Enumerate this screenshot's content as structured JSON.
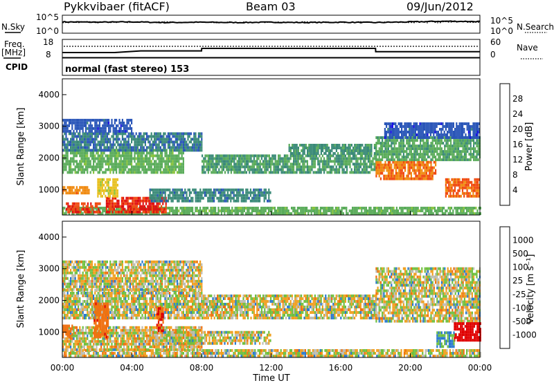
{
  "header": {
    "radar": "Pykkvibaer (fitACF)",
    "beam": "Beam 03",
    "date": "09/Jun/2012"
  },
  "noise_panel": {
    "left_label": "N.Sky",
    "left_ticks": [
      "10^5",
      "10^0"
    ],
    "right_ticks": [
      "10^5",
      "10^0"
    ],
    "right_label": "N.Search"
  },
  "freq_panel": {
    "left_label_1": "Freq.",
    "left_label_2": "[MHz]",
    "left_ticks": [
      "18",
      "8"
    ],
    "right_ticks": [
      "60",
      "0"
    ],
    "right_label": "Nave"
  },
  "cpid_panel": {
    "label": "CPID",
    "text": "normal (fast stereo) 153"
  },
  "x_axis": {
    "ticks": [
      "00:00",
      "04:00",
      "08:00",
      "12:00",
      "16:00",
      "20:00",
      "00:00"
    ],
    "label": "Time UT"
  },
  "power_panel": {
    "ylabel": "Slant Range [km]",
    "y_ticks": [
      "1000",
      "2000",
      "3000",
      "4000"
    ],
    "colorbar_label": "Power [dB]",
    "colorbar_ticks": [
      "4",
      "8",
      "12",
      "16",
      "20",
      "24",
      "28"
    ]
  },
  "velocity_panel": {
    "ylabel": "Slant Range [km]",
    "y_ticks": [
      "1000",
      "2000",
      "3000",
      "4000"
    ],
    "colorbar_label": "Velocity [m s⁻¹]",
    "colorbar_ticks": [
      "1000",
      "500",
      "100",
      "25",
      "-25",
      "-100",
      "-500",
      "-1000"
    ]
  },
  "colors": {
    "power_scale": [
      "#1a10e6",
      "#2a56b8",
      "#3a8a78",
      "#5aac5a",
      "#88c43c",
      "#e8c020",
      "#f08a10",
      "#f04a10",
      "#e01010"
    ],
    "velocity_scale": [
      "#1840c0",
      "#2a7ad0",
      "#3aa040",
      "#70c040",
      "#bdbdb2",
      "#c8c8c0",
      "#f0a020",
      "#f07010",
      "#e03010",
      "#e00000"
    ]
  },
  "chart_data": [
    {
      "type": "line",
      "title": "Pykkvibaer (fitACF) Beam 03 09/Jun/2012",
      "description_key": "noise",
      "x": [
        0,
        2,
        4,
        6,
        8,
        10,
        12,
        14,
        16,
        18,
        20,
        22,
        24
      ],
      "series": [
        {
          "name": "N.Sky",
          "values": [
            3.2,
            3.1,
            3.2,
            3.0,
            3.1,
            3.0,
            3.1,
            3.0,
            3.1,
            3.0,
            3.2,
            3.4,
            3.3
          ]
        }
      ],
      "xlim": [
        0,
        24
      ],
      "ylim": [
        0,
        5
      ]
    },
    {
      "type": "line",
      "description_key": "frequency",
      "x": [
        0,
        3,
        4.5,
        8,
        8.01,
        18,
        18.01,
        24
      ],
      "series": [
        {
          "name": "Freq.",
          "values": [
            10.5,
            10.5,
            11.5,
            11.5,
            13.0,
            13.0,
            11.0,
            11.0
          ]
        }
      ],
      "xlim": [
        0,
        24
      ],
      "ylim": [
        8,
        18
      ]
    },
    {
      "type": "heatmap",
      "description_key": "power",
      "x_range": [
        0,
        24
      ],
      "ylim": [
        200,
        4500
      ],
      "zlim": [
        0,
        30
      ],
      "regions": [
        {
          "t": [
            0,
            24
          ],
          "r": [
            200,
            400
          ],
          "v": 12
        },
        {
          "t": [
            0.2,
            2.2
          ],
          "r": [
            250,
            550
          ],
          "v": 26
        },
        {
          "t": [
            2.5,
            6
          ],
          "r": [
            250,
            700
          ],
          "v": 27
        },
        {
          "t": [
            0,
            1.5
          ],
          "r": [
            850,
            1100
          ],
          "v": 22
        },
        {
          "t": [
            2.0,
            3.2
          ],
          "r": [
            750,
            1350
          ],
          "v": 18
        },
        {
          "t": [
            0,
            7
          ],
          "r": [
            1500,
            2200
          ],
          "v": 12
        },
        {
          "t": [
            0,
            8
          ],
          "r": [
            2200,
            2800
          ],
          "v": 7
        },
        {
          "t": [
            0,
            4
          ],
          "r": [
            2800,
            3200
          ],
          "v": 5
        },
        {
          "t": [
            8,
            18
          ],
          "r": [
            1500,
            2100
          ],
          "v": 10
        },
        {
          "t": [
            13,
            18
          ],
          "r": [
            2100,
            2400
          ],
          "v": 9
        },
        {
          "t": [
            5,
            12
          ],
          "r": [
            600,
            1000
          ],
          "v": 8
        },
        {
          "t": [
            18,
            21.5
          ],
          "r": [
            1300,
            1900
          ],
          "v": 23
        },
        {
          "t": [
            18,
            24
          ],
          "r": [
            1900,
            2600
          ],
          "v": 11
        },
        {
          "t": [
            18.5,
            24
          ],
          "r": [
            2600,
            3100
          ],
          "v": 5
        },
        {
          "t": [
            22,
            24
          ],
          "r": [
            750,
            1300
          ],
          "v": 24
        }
      ]
    },
    {
      "type": "heatmap",
      "description_key": "velocity",
      "x_range": [
        0,
        24
      ],
      "ylim": [
        200,
        4500
      ],
      "zlim": [
        -1000,
        1000
      ],
      "regions": [
        {
          "t": [
            0,
            24
          ],
          "r": [
            200,
            400
          ],
          "v": 0
        },
        {
          "t": [
            0,
            8
          ],
          "r": [
            400,
            1100
          ],
          "v": -10
        },
        {
          "t": [
            0,
            8
          ],
          "r": [
            1400,
            2300
          ],
          "v": 5
        },
        {
          "t": [
            0,
            8
          ],
          "r": [
            2300,
            3200
          ],
          "v": 0
        },
        {
          "t": [
            8,
            18
          ],
          "r": [
            1400,
            2100
          ],
          "v": 0
        },
        {
          "t": [
            5,
            12
          ],
          "r": [
            600,
            1000
          ],
          "v": 0
        },
        {
          "t": [
            18,
            24
          ],
          "r": [
            1300,
            3000
          ],
          "v": 0
        },
        {
          "t": [
            1.8,
            2.6
          ],
          "r": [
            800,
            1900
          ],
          "v": -400
        },
        {
          "t": [
            0,
            0.6
          ],
          "r": [
            800,
            1200
          ],
          "v": -300
        },
        {
          "t": [
            5.4,
            5.8
          ],
          "r": [
            1000,
            1700
          ],
          "v": -500
        },
        {
          "t": [
            22.5,
            24
          ],
          "r": [
            700,
            1300
          ],
          "v": -900
        },
        {
          "t": [
            21.5,
            22.5
          ],
          "r": [
            500,
            1000
          ],
          "v": 150
        }
      ]
    }
  ]
}
